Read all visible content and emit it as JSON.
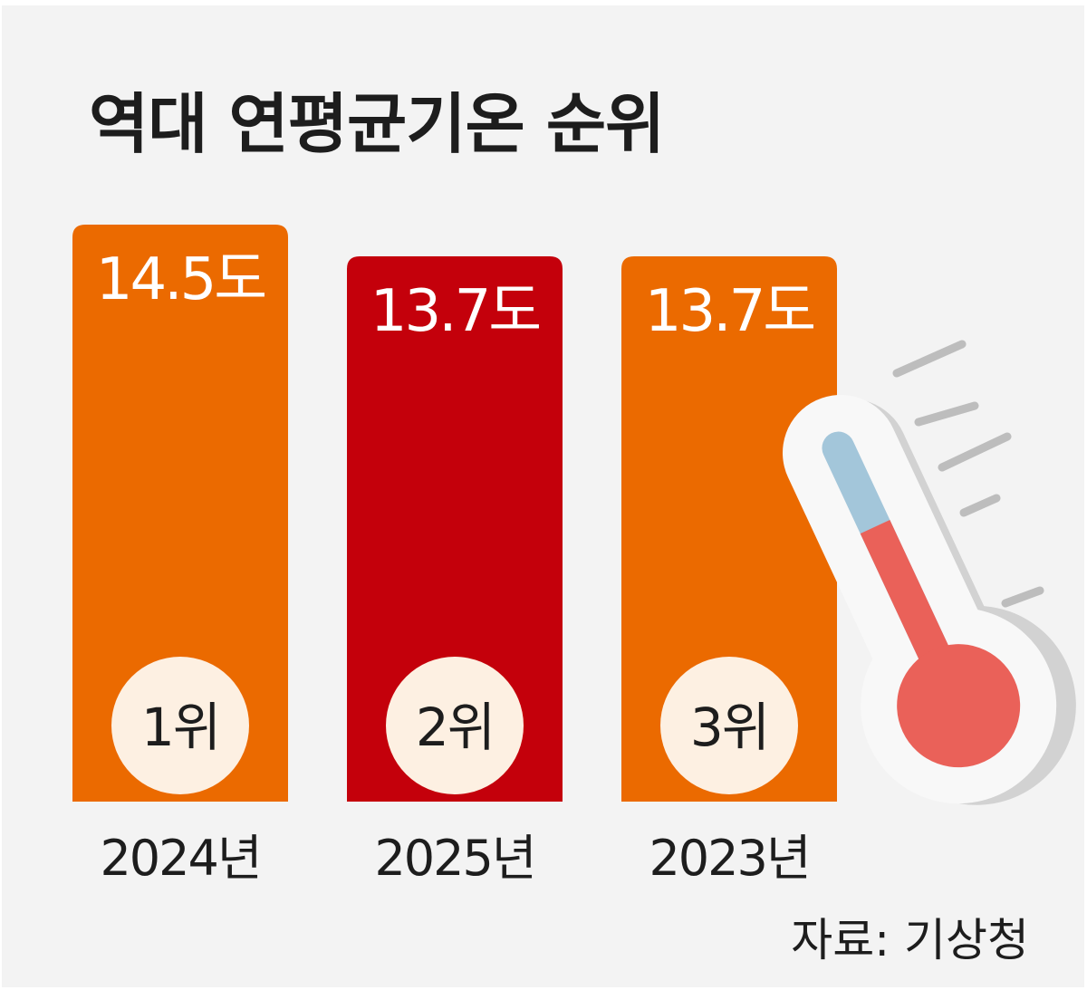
{
  "title": "역대 연평균기온 순위",
  "source": "자료: 기상청",
  "colors": {
    "background": "#f3f3f3",
    "bar_default": "#eb6a00",
    "bar_highlight": "#c4000b",
    "rank_circle": "#fdf0e2",
    "text_dark": "#1d1d1d",
    "text_light": "#ffffff"
  },
  "icons": {
    "decoration": "thermometer-icon"
  },
  "chart_data": {
    "type": "bar",
    "title": "역대 연평균기온 순위",
    "xlabel": "",
    "ylabel": "",
    "categories": [
      "2024년",
      "2025년",
      "2023년"
    ],
    "values": [
      14.5,
      13.7,
      13.7
    ],
    "value_labels": [
      "14.5도",
      "13.7도",
      "13.7도"
    ],
    "rank_labels": [
      "1위",
      "2위",
      "3위"
    ],
    "highlight_index": 1,
    "grid": false,
    "legend": "none"
  }
}
